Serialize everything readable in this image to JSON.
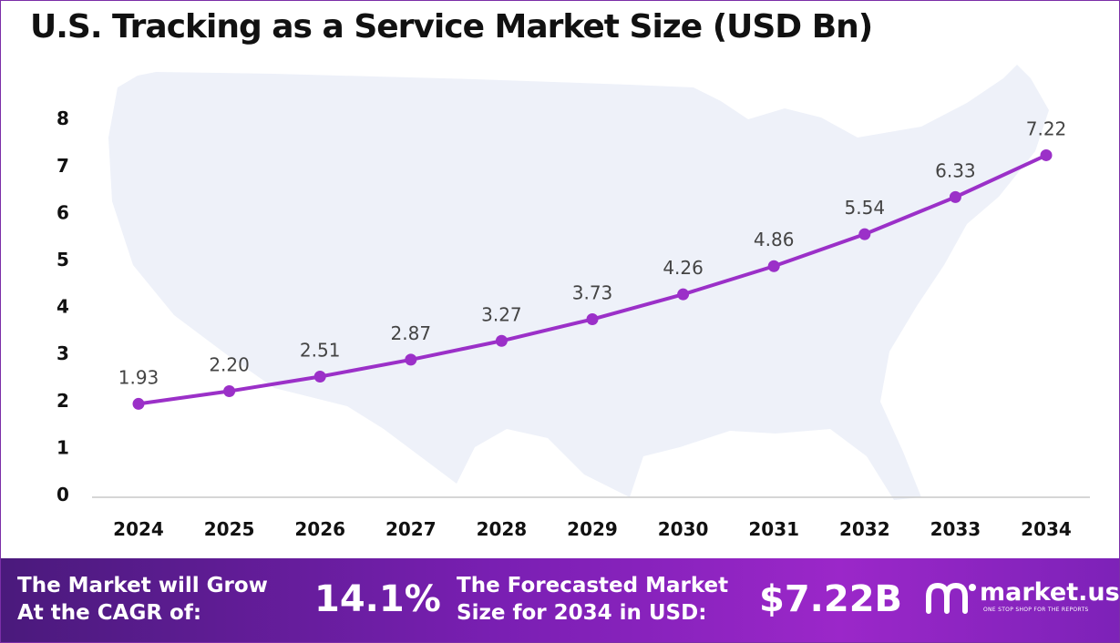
{
  "title": "U.S. Tracking as a Service Market Size (USD Bn)",
  "chart_data": {
    "type": "line",
    "title": "U.S. Tracking as a Service Market Size (USD Bn)",
    "categories": [
      "2024",
      "2025",
      "2026",
      "2027",
      "2028",
      "2029",
      "2030",
      "2031",
      "2032",
      "2033",
      "2034"
    ],
    "values": [
      1.93,
      2.2,
      2.51,
      2.87,
      3.27,
      3.73,
      4.26,
      4.86,
      5.54,
      6.33,
      7.22
    ],
    "value_labels": [
      "1.93",
      "2.20",
      "2.51",
      "2.87",
      "3.27",
      "3.73",
      "4.26",
      "4.86",
      "5.54",
      "6.33",
      "7.22"
    ],
    "ylim": [
      0,
      8
    ],
    "yticks": [
      "0",
      "1",
      "2",
      "3",
      "4",
      "5",
      "6",
      "7",
      "8"
    ],
    "grid": false,
    "line_color": "#9b30c8",
    "map_color": "#eef1f9"
  },
  "banner": {
    "cagr_label_line1": "The Market will Grow",
    "cagr_label_line2": "At the CAGR of:",
    "cagr_value": "14.1%",
    "forecast_label_line1": "The Forecasted Market",
    "forecast_label_line2": "Size for 2034 in USD:",
    "forecast_value": "$7.22B"
  },
  "logo": {
    "name": "market.us",
    "tagline": "ONE STOP SHOP FOR THE REPORTS",
    "icon": "market-us-logo-icon"
  }
}
